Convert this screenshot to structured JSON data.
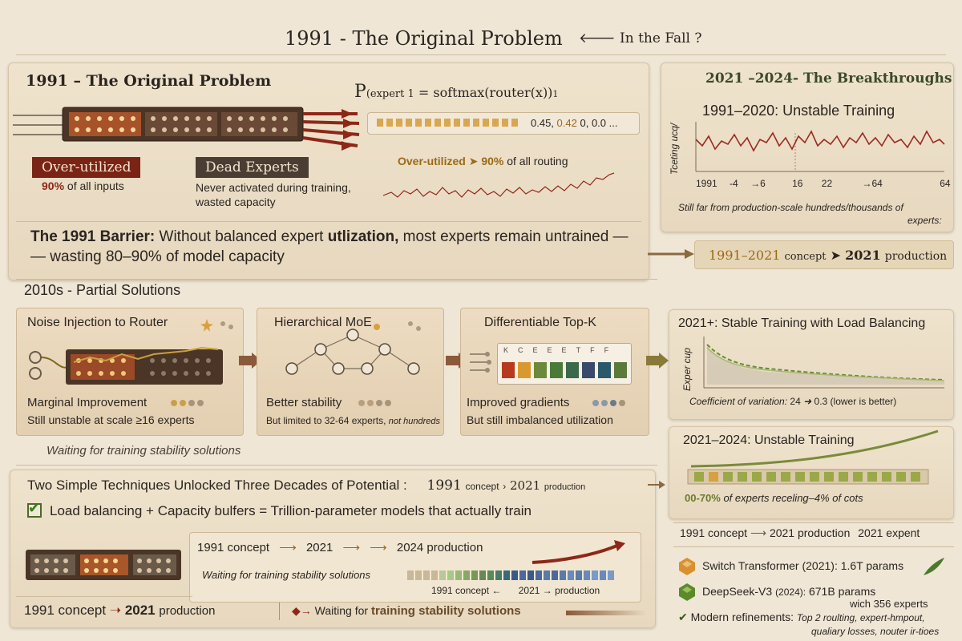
{
  "header": {
    "title": "1991 - The Original Problem",
    "aside": "In the Fall ?"
  },
  "problem": {
    "title": "1991 – The Original Problem",
    "formula_p": "P",
    "formula_sub": "(expert 1",
    "formula_rest": "= softmax(router(x))",
    "formula_idx": "1",
    "probs_a": "0.45,",
    "probs_b": "0.42",
    "probs_c": "0, 0.0 ...",
    "over_label": "Over-utilized",
    "over_pct": "90%",
    "over_desc": "of all inputs",
    "dead_label": "Dead Experts",
    "dead_desc1": "Never activated during training,",
    "dead_desc2": "wasted capacity",
    "over_route_a": "Over-utilized",
    "over_route_pct": "90%",
    "over_route_b": "of all routing"
  },
  "barrier": {
    "lead": "The 1991 Barrier:",
    "line1a": "Without balanced expert",
    "line1b": "utlization,",
    "line1c": "most experts remain untrained —",
    "line2": "— wasting 80–90% of model capacity"
  },
  "breakthroughs": {
    "title": "2021 –2024- The Breakthroughs",
    "chart_title": "1991–2020: Unstable Training",
    "y_label": "Tceting ucq/",
    "ticks": [
      "1991",
      "-4",
      "→6",
      "16",
      "22",
      "→64",
      "64"
    ],
    "note1": "Still far from production-scale hundreds/thousands of",
    "note2": "experts:",
    "band_a": "1991–2021",
    "band_b": "concept",
    "band_c": "2021",
    "band_d": "production"
  },
  "partial": {
    "title": "2010s - Partial Solutions",
    "cards": [
      {
        "title": "Noise Injection to Router",
        "result": "Marginal Improvement",
        "note": "Still unstable at scale ≥16 experts"
      },
      {
        "title": "Hierarchical MoE",
        "result": "Better stability",
        "note_a": "But limited to 32-64 experts,",
        "note_b": "not hundreds"
      },
      {
        "title": "Differentiable Top-K",
        "result": "Improved gradients",
        "note": "But still imbalanced utilization",
        "keys": [
          "K",
          "C",
          "E",
          "E",
          "E",
          "T",
          "F",
          "F"
        ]
      }
    ],
    "waiting": "Waiting for training stability solutions"
  },
  "stable": {
    "title": "2021+: Stable Training with Load Balancing",
    "y_label": "Exper cup",
    "cov_a": "Coefficient of variation:",
    "cov_b": "24",
    "cov_c": "0.3",
    "cov_d": "(lower is better)"
  },
  "unstable2": {
    "title": "2021–2024: Unstable Training",
    "note_a": "00-70%",
    "note_b": "of experts receling–4% of cots"
  },
  "timeline_right": {
    "a": "1991 concept",
    "b": "2021 production",
    "c": "2021 expent"
  },
  "models": [
    {
      "name": "Switch Transformer",
      "year": "(2021):",
      "params": "1.6T params"
    },
    {
      "name": "DeepSeek-V3",
      "year": "(2024):",
      "params": "671B params",
      "extra": "wich 356 experts"
    }
  ],
  "refinements": {
    "lead": "Modern refinements:",
    "line1": "Top 2 roulting, expert-hmpout,",
    "line2": "qualiary losses, nouter ir-tioes"
  },
  "techniques": {
    "title": "Two Simple Techniques Unlocked Three Decades of Potential :",
    "y1": "1991",
    "c1": "concept",
    "y2": "2021",
    "p2": "production",
    "check": "Load balancing + Capacity bulfers = Trillion-parameter models that actually train"
  },
  "timeline": {
    "a": "1991 concept",
    "b": "2021",
    "c": "2024 production",
    "waiting": "Waiting for training stability solutions",
    "sub_a": "1991 concept",
    "sub_b": "2021",
    "sub_c": "production"
  },
  "footer": {
    "a": "1991 concept",
    "b": "2021",
    "c": "production",
    "d": "Waiting for",
    "e": "training stability solutions"
  },
  "colors": {
    "accent_red": "#8e2718",
    "gold": "#c89030",
    "brown": "#4a3a2a",
    "green": "#6a8a3a"
  }
}
